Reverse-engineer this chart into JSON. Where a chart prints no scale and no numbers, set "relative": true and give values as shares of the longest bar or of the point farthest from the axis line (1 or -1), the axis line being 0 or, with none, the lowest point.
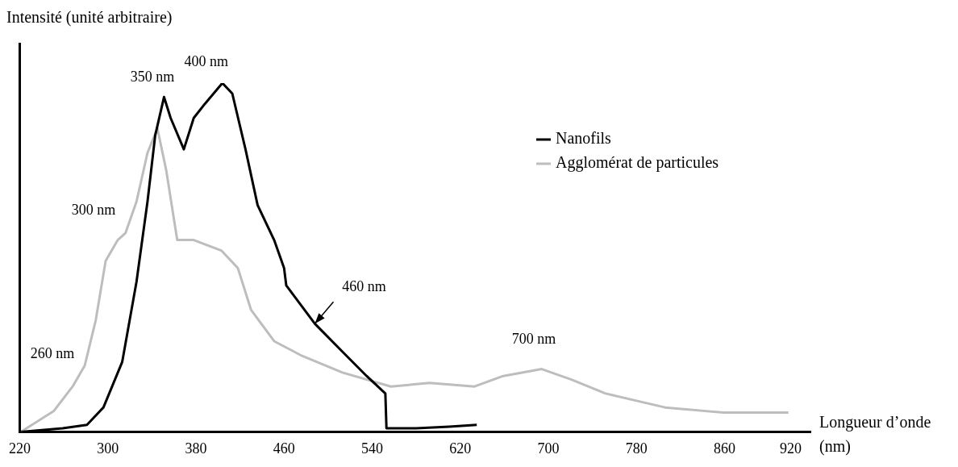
{
  "chart_data": {
    "type": "line",
    "relative": true,
    "xlabel": "Longueur d’onde (nm)",
    "ylabel": "Intensité (unité arbitraire)",
    "xlim": [
      220,
      938
    ],
    "xticks": [
      220,
      300,
      380,
      460,
      540,
      620,
      700,
      780,
      860,
      920
    ],
    "grid": false,
    "legend": "top right",
    "marker": "none",
    "line_style": "solid",
    "series": [
      {
        "name": "Nanofils",
        "color": "#000000",
        "x": [
          221,
          259,
          281,
          296,
          313,
          326,
          336,
          343,
          351,
          357,
          369,
          378,
          388,
          404,
          413,
          425,
          436,
          451,
          460,
          462,
          488,
          513,
          535,
          552,
          553,
          580,
          610,
          635
        ],
        "values": [
          0.0,
          0.01,
          0.02,
          0.07,
          0.2,
          0.43,
          0.66,
          0.85,
          0.96,
          0.9,
          0.81,
          0.9,
          0.94,
          1.0,
          0.97,
          0.81,
          0.65,
          0.55,
          0.47,
          0.42,
          0.31,
          0.23,
          0.16,
          0.11,
          0.01,
          0.01,
          0.015,
          0.02
        ]
      },
      {
        "name": "Agglomérat de particules",
        "color": "#bdbdbd",
        "x": [
          221,
          251,
          268,
          279,
          289,
          298,
          309,
          316,
          326,
          336,
          345,
          353,
          363,
          378,
          403,
          418,
          430,
          451,
          475,
          513,
          557,
          592,
          633,
          659,
          694,
          721,
          752,
          806,
          859,
          918
        ],
        "values": [
          0.0,
          0.06,
          0.13,
          0.19,
          0.32,
          0.49,
          0.55,
          0.57,
          0.66,
          0.8,
          0.87,
          0.75,
          0.55,
          0.55,
          0.52,
          0.47,
          0.35,
          0.26,
          0.22,
          0.17,
          0.13,
          0.14,
          0.13,
          0.16,
          0.18,
          0.15,
          0.11,
          0.07,
          0.055,
          0.055
        ]
      }
    ],
    "annotations": [
      {
        "text": "350 nm",
        "x": 350,
        "y": 0.96
      },
      {
        "text": "400 nm",
        "x": 404,
        "y": 1.0
      },
      {
        "text": "300 nm",
        "x": 298,
        "y": 0.49
      },
      {
        "text": "260 nm",
        "x": 268,
        "y": 0.13
      },
      {
        "text": "460 nm",
        "x": 488,
        "y": 0.31
      },
      {
        "text": "700 nm",
        "x": 700,
        "y": 0.18
      }
    ]
  }
}
